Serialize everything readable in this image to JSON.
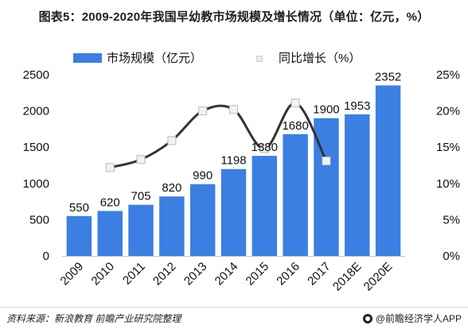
{
  "title": "图表5：2009-2020年我国早幼教市场规模及增长情况（单位：亿元，%）",
  "legend": {
    "bar_label": "市场规模（亿元）",
    "line_label": "同比增长（%）"
  },
  "footer": {
    "source": "资料来源：新浪教育   前瞻产业研究院整理",
    "brand": "@前瞻经济学人APP"
  },
  "colors": {
    "bar": "#3b7fe3",
    "line": "#333333",
    "marker": "#f2f2f2"
  },
  "chart_data": {
    "type": "bar",
    "title": "图表5：2009-2020年我国早幼教市场规模及增长情况（单位：亿元，%）",
    "categories": [
      "2009",
      "2010",
      "2011",
      "2012",
      "2013",
      "2014",
      "2015",
      "2016",
      "2017",
      "2018E",
      "2020E"
    ],
    "series": [
      {
        "name": "市场规模（亿元）",
        "type": "bar",
        "axis": "left",
        "values": [
          550,
          620,
          705,
          820,
          990,
          1198,
          1380,
          1680,
          1900,
          1953,
          2352
        ],
        "labels": [
          "550",
          "620",
          "705",
          "820",
          "990",
          "1198",
          "1380",
          "1680",
          "1900",
          "1953",
          "2352"
        ]
      },
      {
        "name": "同比增长（%）",
        "type": "line",
        "axis": "right",
        "values": [
          null,
          12.2,
          13.3,
          15.9,
          20.0,
          20.2,
          14.8,
          21.1,
          13.1,
          null,
          null
        ]
      }
    ],
    "y_left": {
      "ylim": [
        0,
        2500
      ],
      "ticks": [
        "0",
        "500",
        "1000",
        "1500",
        "2000",
        "2500"
      ]
    },
    "y_right": {
      "ylim": [
        0,
        25
      ],
      "ticks": [
        "0%",
        "5%",
        "10%",
        "15%",
        "20%",
        "25%"
      ]
    },
    "grid": false,
    "legend_position": "top"
  }
}
